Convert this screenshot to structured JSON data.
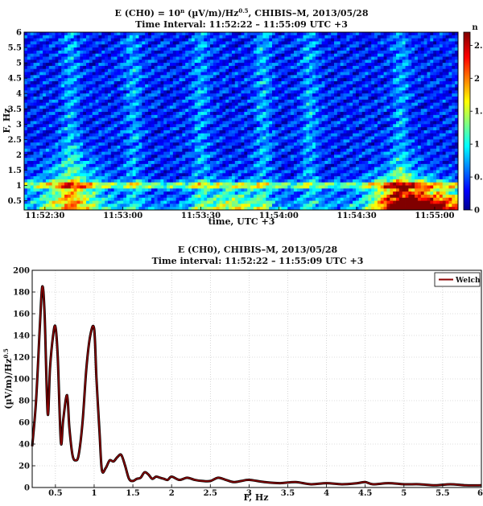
{
  "chart_data": [
    {
      "type": "heatmap",
      "title_main": "E (CH0) = 10",
      "title_sup1": "n",
      "title_mid": " (µV/m)/Hz",
      "title_sup2": "0.5",
      "title_tail": ", CHIBIS–M, 2013/05/28",
      "subtitle": "Time Interval: 11:52:22 – 11:55:09 UTC +3",
      "xlabel": "time, UTC +3",
      "ylabel": "F, Hz",
      "xlim": [
        "11:52:22",
        "11:55:09"
      ],
      "ylim": [
        0.2,
        6
      ],
      "x_ticks": [
        "11:52:30",
        "11:53:00",
        "11:53:30",
        "11:54:00",
        "11:54:30",
        "11:55:00"
      ],
      "x_tick_seconds": [
        8,
        38,
        68,
        98,
        128,
        158
      ],
      "duration_seconds": 167,
      "y_ticks": [
        "0.5",
        "1",
        "1.5",
        "2",
        "2.5",
        "3",
        "3.5",
        "4",
        "4.5",
        "5",
        "5.5",
        "6"
      ],
      "y_tick_values": [
        0.5,
        1,
        1.5,
        2,
        2.5,
        3,
        3.5,
        4,
        4.5,
        5,
        5.5,
        6
      ],
      "colorbar": {
        "label": "n",
        "range": [
          0,
          2.7
        ],
        "ticks": [
          "0",
          "0.5",
          "1",
          "1.5",
          "2",
          "2.5"
        ],
        "tick_values": [
          0,
          0.5,
          1,
          1.5,
          2,
          2.5
        ],
        "colormap": "jet"
      },
      "features": {
        "background_level": 0.4,
        "band_1hz_level": 1.5,
        "low_freq_bursts": [
          {
            "t_seconds": 18,
            "freq_max": 2.0,
            "level": 1.7
          },
          {
            "t_seconds": 80,
            "freq_max": 1.2,
            "level": 1.4
          },
          {
            "t_seconds": 145,
            "freq_max": 1.5,
            "level": 2.6
          },
          {
            "t_seconds": 160,
            "freq_max": 1.0,
            "level": 2.4
          }
        ],
        "vertical_streaks_seconds": [
          18,
          42,
          68,
          92,
          110,
          145
        ]
      }
    },
    {
      "type": "line",
      "title": "E (CH0), CHIBIS–M, 2013/05/28",
      "subtitle": "Time interval: 11:52:22 – 11:55:09 UTC +3",
      "xlabel": "F, Hz",
      "ylabel_main": "(µV/m)/Hz",
      "ylabel_sup": "0.5",
      "xlim": [
        0.2,
        6
      ],
      "ylim": [
        0,
        200
      ],
      "x_ticks": [
        "0.5",
        "1",
        "1.5",
        "2",
        "2.5",
        "3",
        "3.5",
        "4",
        "4.5",
        "5",
        "5.5",
        "6"
      ],
      "x_tick_values": [
        0.5,
        1,
        1.5,
        2,
        2.5,
        3,
        3.5,
        4,
        4.5,
        5,
        5.5,
        6
      ],
      "y_ticks": [
        "0",
        "20",
        "40",
        "60",
        "80",
        "100",
        "120",
        "140",
        "160",
        "180",
        "200"
      ],
      "y_tick_values": [
        0,
        20,
        40,
        60,
        80,
        100,
        120,
        140,
        160,
        180,
        200
      ],
      "grid": true,
      "legend": "top-right",
      "series": [
        {
          "name": "Welch",
          "color": "#8b0000",
          "x": [
            0.2,
            0.25,
            0.3,
            0.33,
            0.36,
            0.4,
            0.43,
            0.47,
            0.5,
            0.53,
            0.57,
            0.6,
            0.65,
            0.68,
            0.72,
            0.76,
            0.8,
            0.85,
            0.9,
            0.95,
            1.0,
            1.03,
            1.07,
            1.1,
            1.15,
            1.2,
            1.25,
            1.3,
            1.35,
            1.4,
            1.45,
            1.5,
            1.55,
            1.6,
            1.65,
            1.7,
            1.75,
            1.8,
            1.85,
            1.9,
            1.95,
            2.0,
            2.1,
            2.2,
            2.3,
            2.4,
            2.5,
            2.6,
            2.7,
            2.8,
            2.9,
            3.0,
            3.2,
            3.4,
            3.6,
            3.8,
            4.0,
            4.2,
            4.4,
            4.5,
            4.6,
            4.8,
            5.0,
            5.2,
            5.4,
            5.6,
            5.8,
            6.0
          ],
          "y": [
            38,
            80,
            150,
            185,
            160,
            68,
            110,
            140,
            148,
            120,
            42,
            62,
            85,
            55,
            30,
            25,
            30,
            60,
            110,
            140,
            146,
            100,
            50,
            16,
            18,
            25,
            24,
            28,
            30,
            20,
            8,
            6,
            8,
            9,
            14,
            12,
            8,
            10,
            9,
            8,
            7,
            10,
            7,
            9,
            7,
            6,
            6,
            9,
            7,
            5,
            6,
            7,
            5,
            4,
            5,
            3,
            4,
            3,
            4,
            5,
            3,
            4,
            3,
            3,
            2,
            3,
            2,
            2
          ]
        }
      ]
    }
  ]
}
